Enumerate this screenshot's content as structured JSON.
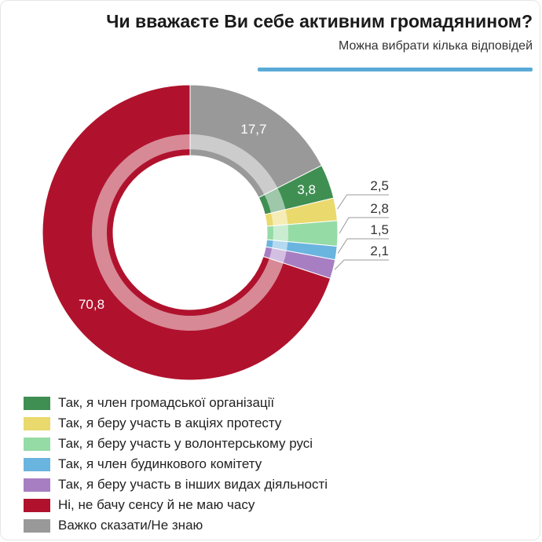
{
  "title": "Чи вважаєте Ви себе активним громадянином?",
  "subtitle": "Можна вибрати кілька відповідей",
  "accent_color": "#5aaad7",
  "chart_data": {
    "type": "pie",
    "title": "Чи вважаєте Ви себе активним громадянином?",
    "subtitle": "Можна вибрати кілька відповідей",
    "segments": [
      {
        "name": "Так, я член громадської організації",
        "value": 3.8,
        "label": "3,8",
        "color": "#3f8f52"
      },
      {
        "name": "Так, я беру участь в акціях протесту",
        "value": 2.5,
        "label": "2,5",
        "color": "#ead96c"
      },
      {
        "name": "Так, я беру участь у волонтерському русі",
        "value": 2.8,
        "label": "2,8",
        "color": "#95dba5"
      },
      {
        "name": "Так, я член будинкового комітету",
        "value": 1.5,
        "label": "1,5",
        "color": "#6ab4e0"
      },
      {
        "name": "Так, я беру участь в інших видах діяльності",
        "value": 2.1,
        "label": "2,1",
        "color": "#a77ec2"
      },
      {
        "name": "Ні, не бачу сенсу й не маю часу",
        "value": 70.8,
        "label": "70,8",
        "color": "#b0122d"
      },
      {
        "name": "Важко сказати/Не знаю",
        "value": 17.7,
        "label": "17,7",
        "color": "#999999"
      }
    ],
    "legend_position": "bottom-left"
  }
}
